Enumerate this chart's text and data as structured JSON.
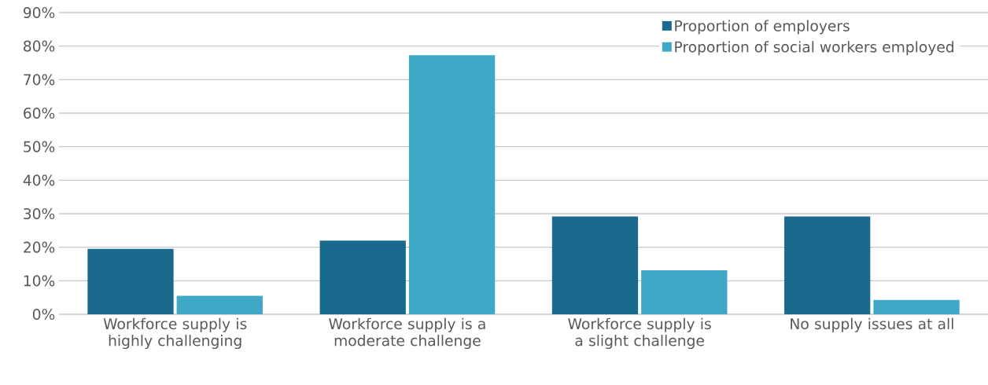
{
  "chart_data": {
    "type": "bar",
    "categories": [
      "Workforce supply is highly challenging",
      "Workforce supply is a moderate challenge",
      "Workforce supply is a slight challenge",
      "No supply issues at all"
    ],
    "series": [
      {
        "name": "Proportion of employers",
        "color": "#1a6a8e",
        "values": [
          19.5,
          22,
          29.2,
          29.2
        ]
      },
      {
        "name": "Proportion of social workers employed",
        "color": "#3ea8c6",
        "values": [
          5.5,
          77.3,
          13.1,
          4.3
        ]
      }
    ],
    "ylim": [
      0,
      90
    ],
    "yticks": [
      {
        "value": 0,
        "label": "0%"
      },
      {
        "value": 10,
        "label": "10%"
      },
      {
        "value": 20,
        "label": "20%"
      },
      {
        "value": 30,
        "label": "30%"
      },
      {
        "value": 40,
        "label": "40%"
      },
      {
        "value": 50,
        "label": "50%"
      },
      {
        "value": 60,
        "label": "60%"
      },
      {
        "value": 70,
        "label": "70%"
      },
      {
        "value": 80,
        "label": "80%"
      },
      {
        "value": 90,
        "label": "90%"
      }
    ],
    "grid": "y",
    "legend": "top right"
  }
}
